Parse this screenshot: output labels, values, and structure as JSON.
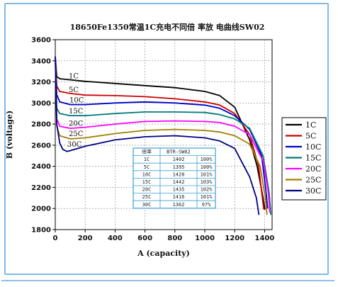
{
  "chart_data": {
    "type": "line",
    "title": "18650Fe1350常温1C充电不同倍 率放 电曲线SW02",
    "xlabel": "A (capacity)",
    "ylabel": "B (voltage)",
    "xlim": [
      0,
      1450
    ],
    "ylim": [
      1800,
      3600
    ],
    "x_ticks": [
      "0",
      "200",
      "400",
      "600",
      "800",
      "1000",
      "1200",
      "1400"
    ],
    "y_ticks": [
      "1800",
      "2000",
      "2200",
      "2400",
      "2600",
      "2800",
      "3000",
      "3200",
      "3400",
      "3600"
    ],
    "legend_position": "right",
    "series": [
      {
        "name": "1C",
        "color": "#000000",
        "x": [
          0,
          10,
          30,
          100,
          200,
          400,
          600,
          800,
          1000,
          1100,
          1200,
          1300,
          1350,
          1390,
          1402
        ],
        "y": [
          3440,
          3250,
          3230,
          3220,
          3205,
          3185,
          3165,
          3145,
          3110,
          3070,
          2960,
          2650,
          2400,
          2100,
          1990
        ]
      },
      {
        "name": "5C",
        "color": "#cc0000",
        "x": [
          0,
          10,
          30,
          100,
          200,
          400,
          600,
          800,
          1000,
          1100,
          1200,
          1300,
          1360,
          1385,
          1395
        ],
        "y": [
          3440,
          3160,
          3110,
          3090,
          3075,
          3070,
          3060,
          3040,
          3010,
          2980,
          2900,
          2700,
          2400,
          2100,
          1990
        ]
      },
      {
        "name": "10C",
        "color": "#0000cc",
        "x": [
          0,
          10,
          30,
          100,
          200,
          400,
          600,
          800,
          1000,
          1100,
          1200,
          1300,
          1380,
          1410,
          1420
        ],
        "y": [
          3440,
          3080,
          3010,
          2985,
          2985,
          3000,
          3010,
          3000,
          2980,
          2950,
          2880,
          2750,
          2500,
          2150,
          2000
        ]
      },
      {
        "name": "15C",
        "color": "#007a7a",
        "x": [
          0,
          10,
          30,
          100,
          200,
          400,
          600,
          800,
          1000,
          1100,
          1200,
          1300,
          1390,
          1430,
          1442
        ],
        "y": [
          3440,
          2950,
          2900,
          2880,
          2880,
          2900,
          2915,
          2915,
          2910,
          2890,
          2850,
          2760,
          2500,
          2150,
          1940
        ]
      },
      {
        "name": "20C",
        "color": "#ff00ff",
        "x": [
          0,
          10,
          30,
          100,
          200,
          400,
          600,
          800,
          1000,
          1100,
          1200,
          1300,
          1390,
          1425,
          1435
        ],
        "y": [
          3440,
          2850,
          2780,
          2760,
          2770,
          2800,
          2825,
          2830,
          2825,
          2815,
          2780,
          2700,
          2450,
          2150,
          1960
        ]
      },
      {
        "name": "25C",
        "color": "#a08000",
        "x": [
          0,
          10,
          30,
          100,
          200,
          400,
          600,
          800,
          1000,
          1100,
          1200,
          1300,
          1370,
          1405,
          1416
        ],
        "y": [
          3440,
          2780,
          2690,
          2660,
          2670,
          2710,
          2740,
          2750,
          2740,
          2725,
          2690,
          2610,
          2400,
          2100,
          1940
        ]
      },
      {
        "name": "30C",
        "color": "#000080",
        "x": [
          0,
          10,
          30,
          50,
          80,
          130,
          200,
          400,
          600,
          800,
          1000,
          1100,
          1200,
          1300,
          1345,
          1362
        ],
        "y": [
          3440,
          2800,
          2620,
          2560,
          2540,
          2560,
          2590,
          2650,
          2680,
          2690,
          2670,
          2640,
          2570,
          2300,
          2100,
          1940
        ]
      }
    ],
    "table": {
      "headers": [
        "倍率",
        "BTR-SW02",
        ""
      ],
      "rows": [
        [
          "1C",
          "1402",
          "100%"
        ],
        [
          "5C",
          "1395",
          "100%"
        ],
        [
          "10C",
          "1420",
          "101%"
        ],
        [
          "15C",
          "1442",
          "103%"
        ],
        [
          "20C",
          "1435",
          "102%"
        ],
        [
          "25C",
          "1416",
          "101%"
        ],
        [
          "30C",
          "1362",
          "97%"
        ]
      ]
    }
  }
}
